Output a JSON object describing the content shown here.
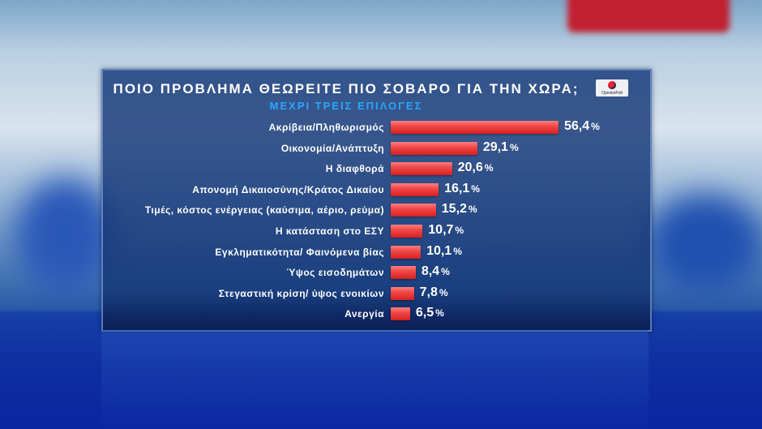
{
  "chart_data": {
    "type": "bar",
    "orientation": "horizontal",
    "title": "ΠΟΙΟ ΠΡΟΒΛΗΜΑ ΘΕΩΡΕΙΤΕ ΠΙΟ ΣΟΒΑΡΟ ΓΙΑ ΤΗΝ ΧΩΡΑ;",
    "subtitle": "ΜΕΧΡΙ ΤΡΕΙΣ ΕΠΙΛΟΓΕΣ",
    "categories": [
      "Ακρίβεια/Πληθωρισμός",
      "Οικονομία/Ανάπτυξη",
      "Η διαφθορά",
      "Απονομή Δικαιοσύνης/Κράτος Δικαίου",
      "Τιμές, κόστος ενέργειας (καύσιμα, αέριο, ρεύμα)",
      "Η κατάσταση στο ΕΣΥ",
      "Εγκληματικότητα/ Φαινόμενα βίας",
      "Ύψος εισοδημάτων",
      "Στεγαστική κρίση/ ύψος ενοικίων",
      "Ανεργία"
    ],
    "values": [
      56.4,
      29.1,
      20.6,
      16.1,
      15.2,
      10.7,
      10.1,
      8.4,
      7.8,
      6.5
    ],
    "value_labels": [
      "56,4",
      "29,1",
      "20,6",
      "16,1",
      "15,2",
      "10,7",
      "10,1",
      "8,4",
      "7,8",
      "6,5"
    ],
    "unit": "%",
    "bar_color": "#e83030",
    "grid": false
  },
  "logo": {
    "text": "OpinionPoll"
  }
}
